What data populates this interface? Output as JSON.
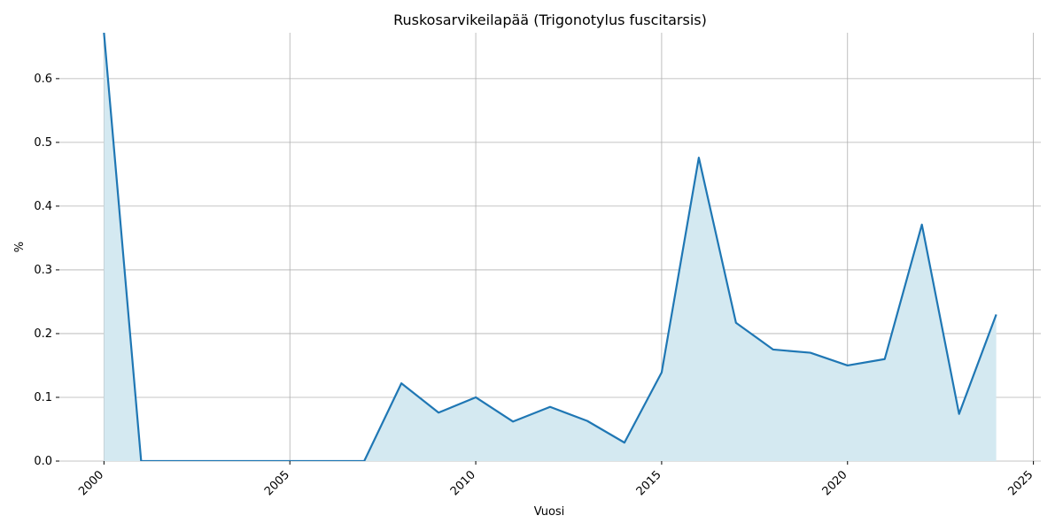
{
  "chart_data": {
    "type": "area",
    "title": "Ruskosarvikeilapää (Trigonotylus fuscitarsis)",
    "x_label": "Vuosi",
    "y_label": "%",
    "x": [
      2000,
      2001,
      2002,
      2003,
      2004,
      2005,
      2006,
      2007,
      2008,
      2009,
      2010,
      2011,
      2012,
      2013,
      2014,
      2015,
      2016,
      2017,
      2018,
      2019,
      2020,
      2021,
      2022,
      2023,
      2024
    ],
    "series": [
      {
        "color": "#1f77b4",
        "fill": "#d4e9f1",
        "values": [
          0.672,
          0,
          0,
          0,
          0,
          0,
          0,
          0,
          0.122,
          0.076,
          0.1,
          0.062,
          0.085,
          0.063,
          0.029,
          0.139,
          0.476,
          0.217,
          0.175,
          0.17,
          0.15,
          0.16,
          0.371,
          0.074,
          0.23
        ]
      }
    ],
    "xlim": [
      1998.8,
      2025.2
    ],
    "xticks": [
      2000,
      2005,
      2010,
      2015,
      2020,
      2025
    ],
    "ylim": [
      0,
      0.672
    ],
    "yticks": [
      {
        "value": 0,
        "label": "0.0"
      },
      {
        "value": 0.1,
        "label": "0.1"
      },
      {
        "value": 0.2,
        "label": "0.2"
      },
      {
        "value": 0.3,
        "label": "0.3"
      },
      {
        "value": 0.4,
        "label": "0.4"
      },
      {
        "value": 0.5,
        "label": "0.5"
      },
      {
        "value": 0.6,
        "label": "0.6"
      }
    ],
    "grid": true
  }
}
